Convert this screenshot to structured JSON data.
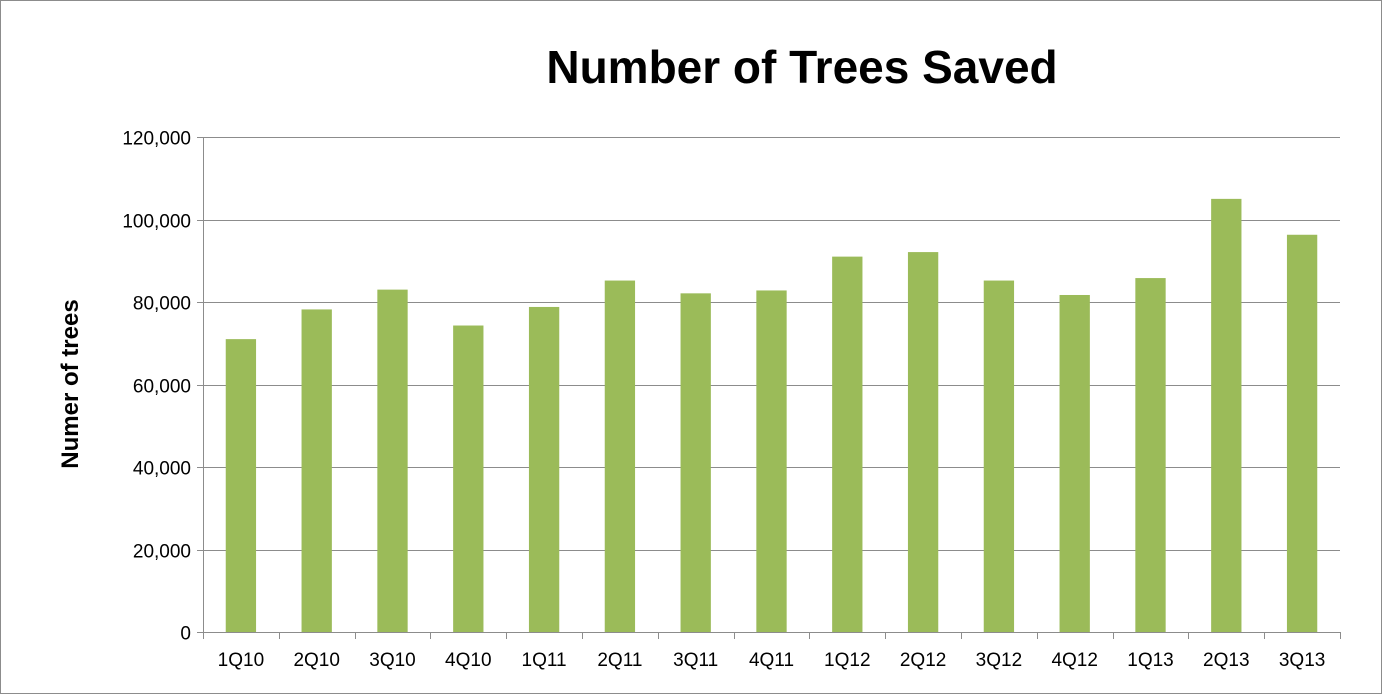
{
  "chart_data": {
    "type": "bar",
    "title": "Number of Trees Saved",
    "xlabel": "",
    "ylabel": "Numer of trees",
    "categories": [
      "1Q10",
      "2Q10",
      "3Q10",
      "4Q10",
      "1Q11",
      "2Q11",
      "3Q11",
      "4Q11",
      "1Q12",
      "2Q12",
      "3Q12",
      "4Q12",
      "1Q13",
      "2Q13",
      "3Q13"
    ],
    "values": [
      71000,
      78200,
      83000,
      74300,
      78800,
      85200,
      82100,
      82800,
      91000,
      92100,
      85200,
      81700,
      85800,
      105000,
      96300
    ],
    "ylim": [
      0,
      120000
    ],
    "yticks": [
      0,
      20000,
      40000,
      60000,
      80000,
      100000,
      120000
    ],
    "ytick_labels": [
      "0",
      "20,000",
      "40,000",
      "60,000",
      "80,000",
      "100,000",
      "120,000"
    ],
    "grid": true,
    "bar_color": "#9BBB59",
    "gridline_color": "#8C8C8C",
    "legend": "none"
  }
}
